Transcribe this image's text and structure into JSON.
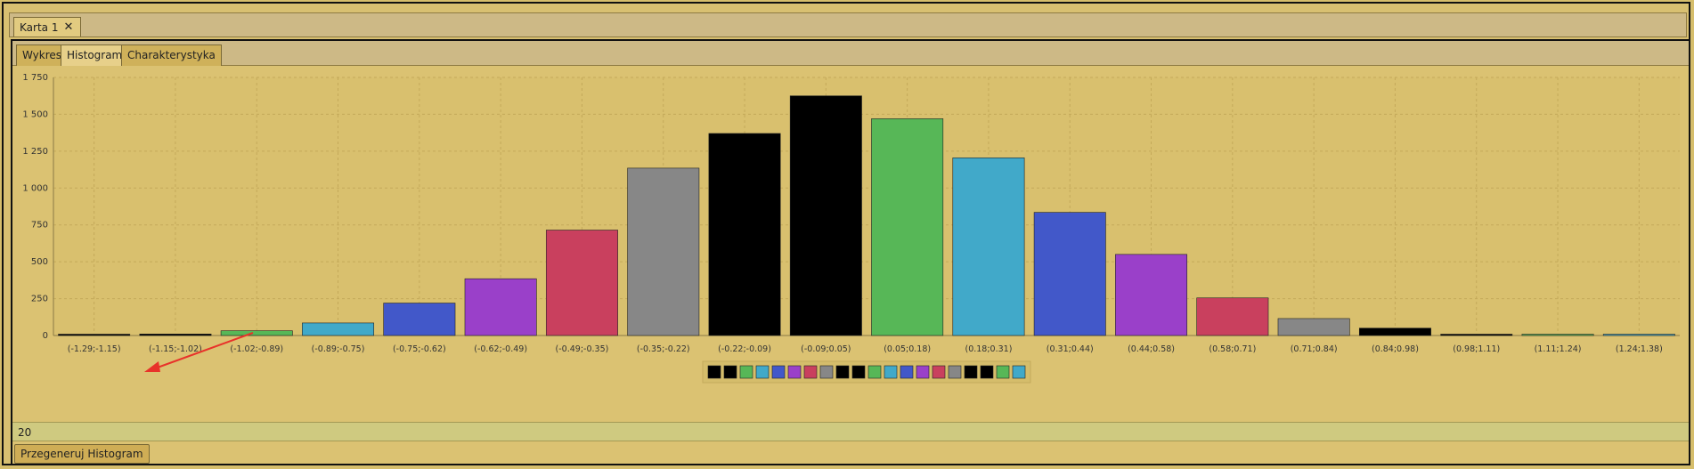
{
  "outer_tab": {
    "label": "Karta 1",
    "close_glyph": "✕",
    "close_icon": "close-icon"
  },
  "inner_tabs": [
    {
      "label": "Wykres",
      "active": false
    },
    {
      "label": "Histogram",
      "active": true
    },
    {
      "label": "Charakterystyka",
      "active": false
    }
  ],
  "controls": {
    "bins_value": "20",
    "regenerate_label": "Przegeneruj Histogram"
  },
  "colors": {
    "black": "#000000",
    "gray": "#878787",
    "green": "#57b757",
    "cyan": "#41a9c9",
    "blue": "#4258c9",
    "purple": "#9a40c9",
    "red": "#c9405e",
    "arrow": "#e8322a"
  },
  "chart_data": {
    "type": "bar",
    "categories": [
      "(-1.29;-1.15)",
      "(-1.15;-1.02)",
      "(-1.02;-0.89)",
      "(-0.89;-0.75)",
      "(-0.75;-0.62)",
      "(-0.62;-0.49)",
      "(-0.49;-0.35)",
      "(-0.35;-0.22)",
      "(-0.22;-0.09)",
      "(-0.09;0.05)",
      "(0.05;0.18)",
      "(0.18;0.31)",
      "(0.31;0.44)",
      "(0.44;0.58)",
      "(0.58;0.71)",
      "(0.71;0.84)",
      "(0.84;0.98)",
      "(0.98;1.11)",
      "(1.11;1.24)",
      "(1.24;1.38)"
    ],
    "values": [
      4,
      10,
      32,
      85,
      220,
      385,
      715,
      1135,
      1370,
      1625,
      1470,
      1205,
      835,
      550,
      255,
      115,
      50,
      9,
      3,
      2
    ],
    "bar_colors": [
      "#000000",
      "#000000",
      "#57b757",
      "#41a9c9",
      "#4258c9",
      "#9a40c9",
      "#c9405e",
      "#878787",
      "#000000",
      "#000000",
      "#57b757",
      "#41a9c9",
      "#4258c9",
      "#9a40c9",
      "#c9405e",
      "#878787",
      "#000000",
      "#000000",
      "#57b757",
      "#41a9c9"
    ],
    "ylim": [
      0,
      1750
    ],
    "yticks": [
      0,
      250,
      500,
      750,
      1000,
      1250,
      1500,
      1750
    ],
    "ytick_labels": [
      "0",
      "250",
      "500",
      "750",
      "1 000",
      "1 250",
      "1 500",
      "1 750"
    ],
    "grid": true,
    "legend_placement": "bottom-center",
    "title": "",
    "xlabel": "",
    "ylabel": ""
  }
}
